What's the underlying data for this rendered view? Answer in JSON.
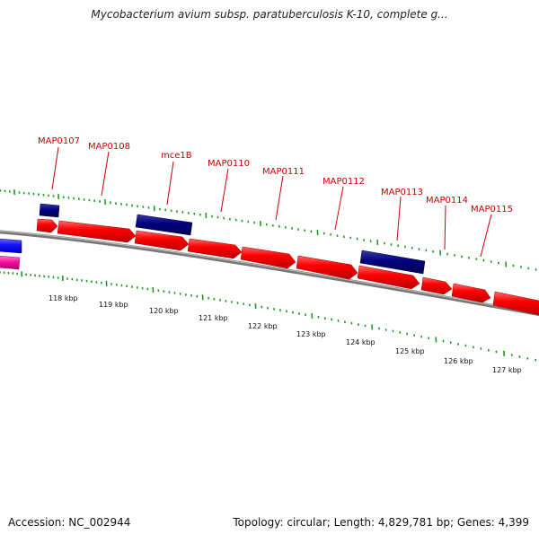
{
  "title": "Mycobacterium avium subsp. paratuberculosis K-10, complete g...",
  "footer": {
    "accession": "Accession: NC_002944",
    "summary": "Topology: circular; Length: 4,829,781 bp; Genes: 4,399"
  },
  "colors": {
    "backbone": "#7f7f7f",
    "tick": "#229922",
    "cds_forward": "#ff0000",
    "cds_other": "#000080",
    "label": "#cc0000",
    "left_gene_blue": "#1010ff",
    "left_gene_pink": "#ff10a0"
  },
  "scale_labels": [
    "118 kbp",
    "119 kbp",
    "120 kbp",
    "121 kbp",
    "122 kbp",
    "123 kbp",
    "124 kbp",
    "125 kbp",
    "126 kbp",
    "127 kbp"
  ],
  "gene_labels": [
    "MAP0107",
    "MAP0108",
    "mce1B",
    "MAP0110",
    "MAP0111",
    "MAP0112",
    "MAP0113",
    "MAP0114",
    "MAP0115"
  ]
}
